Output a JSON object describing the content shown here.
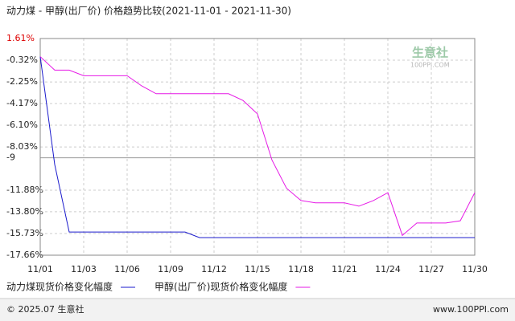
{
  "chart_data": {
    "type": "line",
    "title": "动力煤 - 甲醇(出厂价) 价格趋势比较(2021-11-01 - 2021-11-30)",
    "categories": [
      "11/01",
      null,
      null,
      "11/03",
      null,
      null,
      "11/06",
      null,
      null,
      "11/09",
      null,
      null,
      "11/12",
      null,
      null,
      "11/15",
      null,
      null,
      "11/18",
      null,
      null,
      "11/21",
      null,
      null,
      "11/24",
      null,
      null,
      "11/27",
      null,
      null,
      "11/30"
    ],
    "series": [
      {
        "name": "动力煤现货价格变化幅度",
        "color": "#1a1acc",
        "values": [
          0,
          -9.6,
          -15.6,
          -15.6,
          -15.6,
          -15.6,
          -15.6,
          -15.6,
          -15.6,
          -15.6,
          -15.6,
          -16.1,
          -16.1,
          -16.1,
          -16.1,
          -16.1,
          -16.1,
          -16.1,
          -16.1,
          -16.1,
          -16.1,
          -16.1,
          -16.1,
          -16.1,
          -16.1,
          -16.1,
          -16.1,
          -16.1,
          -16.1,
          -16.1,
          -16.1
        ]
      },
      {
        "name": "甲醇(出厂价)现货价格变化幅度",
        "color": "#e619e6",
        "values": [
          0,
          -1.2,
          -1.2,
          -1.7,
          -1.7,
          -1.7,
          -1.7,
          -2.6,
          -3.3,
          -3.3,
          -3.3,
          -3.3,
          -3.3,
          -3.3,
          -3.9,
          -5.1,
          -9.2,
          -11.7,
          -12.8,
          -13.0,
          -13.0,
          -13.0,
          -13.3,
          -12.8,
          -12.1,
          -15.9,
          -14.8,
          -14.8,
          -14.8,
          -14.6,
          -12.1
        ]
      }
    ],
    "ylim": [
      -17.66,
      1.61
    ],
    "yticks": [
      {
        "value": 1.61,
        "label": "1.61%"
      },
      {
        "value": -0.32,
        "label": "-0.32%"
      },
      {
        "value": -2.25,
        "label": "-2.25%"
      },
      {
        "value": -4.17,
        "label": "-4.17%"
      },
      {
        "value": -6.1,
        "label": "-6.10%"
      },
      {
        "value": -8.03,
        "label": "-8.03%"
      },
      -9,
      {
        "value": -11.88,
        "label": "-11.88%"
      },
      {
        "value": -13.8,
        "label": "-13.80%"
      },
      {
        "value": -15.73,
        "label": "-15.73%"
      },
      {
        "value": -17.66,
        "label": "-17.66%"
      }
    ],
    "grid": true,
    "watermark": {
      "name": "生意社",
      "site": "100PPI.COM"
    },
    "footer": {
      "left": "© 2025.07 生意社",
      "right": "www.100PPI.com"
    }
  }
}
